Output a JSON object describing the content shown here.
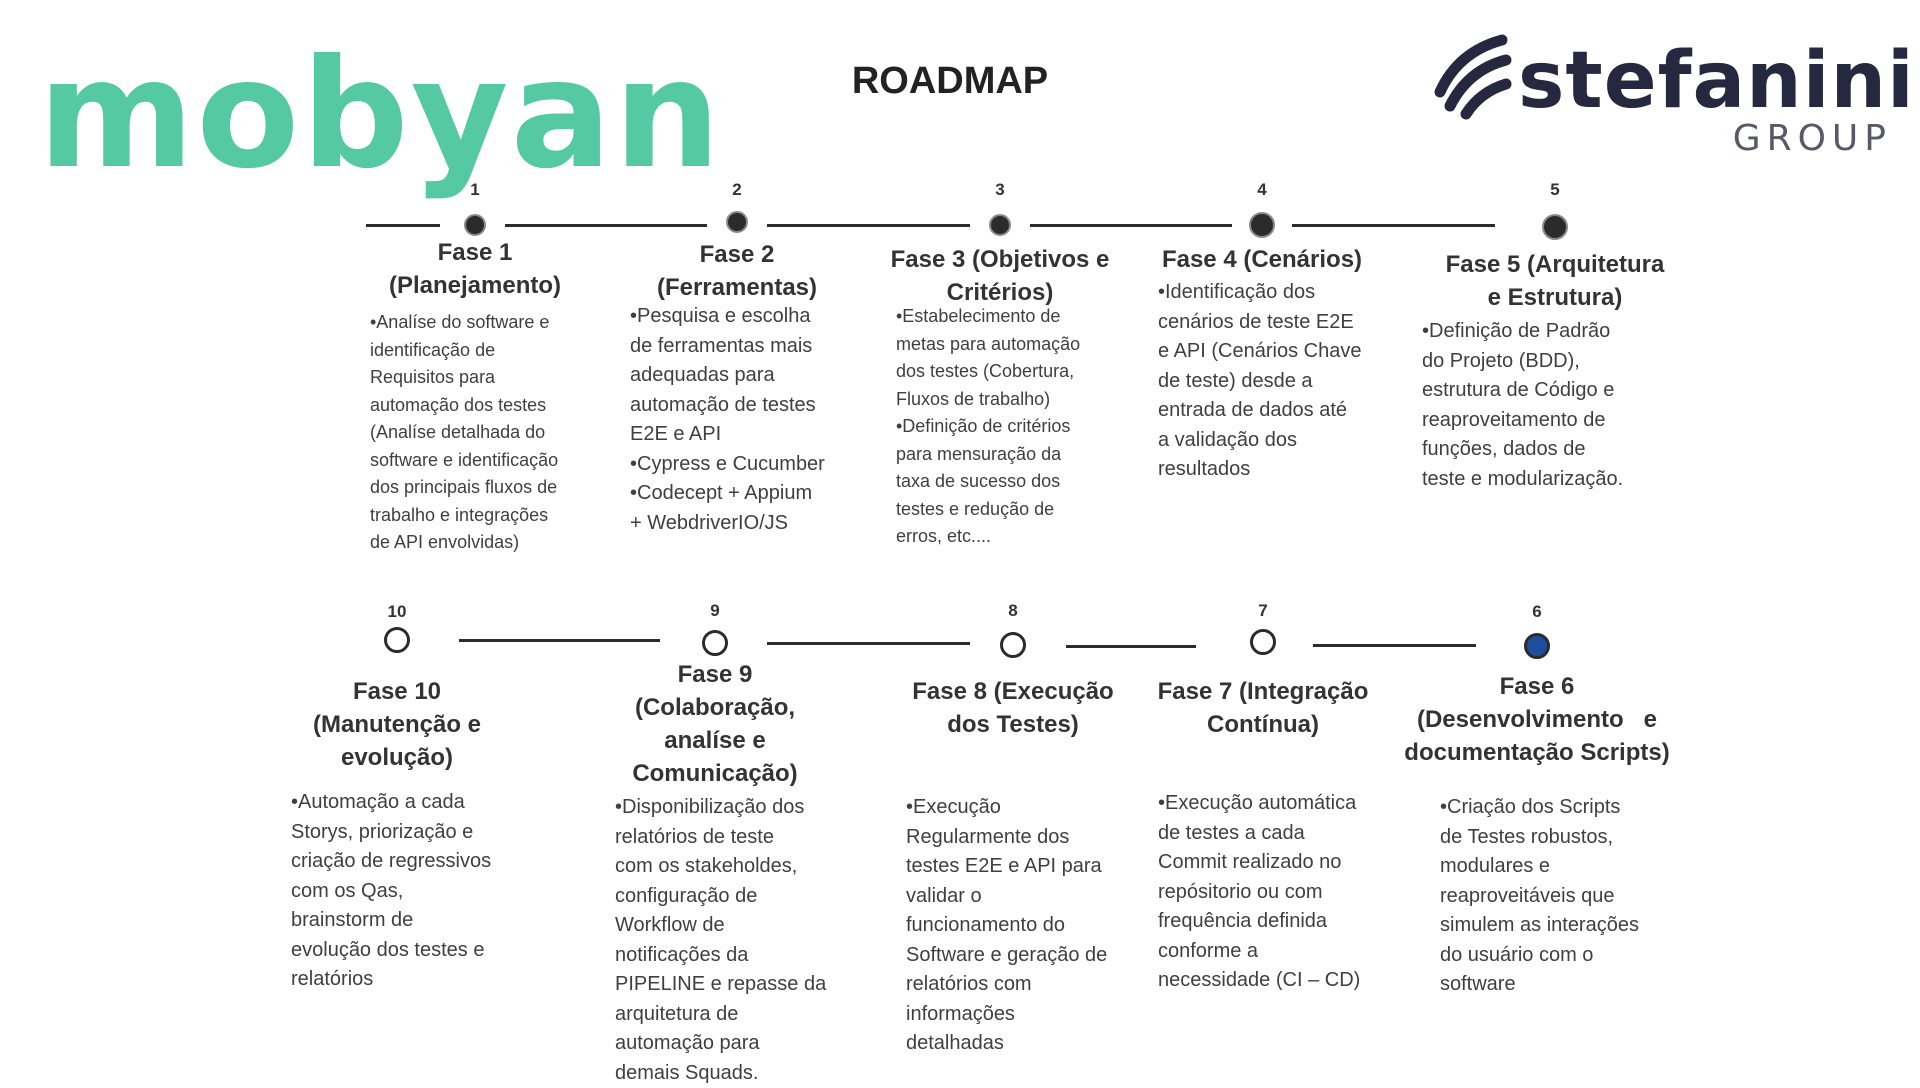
{
  "title": "ROADMAP",
  "logos": {
    "left": "mobyan",
    "right_name": "stefanini",
    "right_sub": "GROUP"
  },
  "colors": {
    "mobyan_green": "#55c9a1",
    "stefanini_navy": "#25283f",
    "current_phase_blue": "#1e4d9c",
    "line_dark": "#2c2c2c"
  },
  "phases": [
    {
      "number": "1",
      "status": "filled",
      "title_lines": [
        "Fase 1",
        "(Planejamento)"
      ],
      "desc_lines": [
        "•Analíse do software e",
        "identificação de",
        "Requisitos para",
        "automação dos testes",
        "(Analíse detalhada do",
        "software e identificação",
        "dos principais fluxos de",
        "trabalho e integrações",
        "de API envolvidas)"
      ]
    },
    {
      "number": "2",
      "status": "filled",
      "title_lines": [
        "Fase 2",
        "(Ferramentas)"
      ],
      "desc_lines": [
        "•Pesquisa e escolha",
        "de ferramentas mais",
        "adequadas para",
        "automação de testes",
        "E2E e API",
        "•Cypress e Cucumber",
        "•Codecept + Appium",
        "+ WebdriverIO/JS"
      ]
    },
    {
      "number": "3",
      "status": "filled",
      "title_lines": [
        "Fase 3 (Objetivos e",
        "Critérios)"
      ],
      "desc_lines": [
        "•Estabelecimento de",
        "metas para automação",
        "dos testes (Cobertura,",
        "Fluxos de trabalho)",
        "•Definição de critérios",
        "para mensuração da",
        "taxa de sucesso dos",
        "testes e redução de",
        "erros, etc...."
      ]
    },
    {
      "number": "4",
      "status": "filled",
      "title_lines": [
        "Fase 4 (Cenários)"
      ],
      "desc_lines": [
        "•Identificação dos",
        "cenários de teste E2E",
        "e API (Cenários Chave",
        "de teste) desde a",
        "entrada de dados até",
        "a validação dos",
        "resultados"
      ]
    },
    {
      "number": "5",
      "status": "filled",
      "title_lines": [
        "Fase 5 (Arquitetura",
        "e Estrutura)"
      ],
      "desc_lines": [
        "•Definição de Padrão",
        "do Projeto (BDD),",
        "estrutura de Código e",
        "reaproveitamento de",
        "funções, dados de",
        "teste e modularização."
      ]
    },
    {
      "number": "6",
      "status": "current",
      "title_lines": [
        "Fase 6",
        "(Desenvolvimento   e",
        "documentação Scripts)"
      ],
      "desc_lines": [
        "•Criação dos Scripts",
        "de Testes robustos,",
        "modulares e",
        "reaproveitáveis que",
        "simulem as interações",
        "do usuário com o",
        "software"
      ]
    },
    {
      "number": "7",
      "status": "pending",
      "title_lines": [
        "Fase 7 (Integração",
        "Contínua)"
      ],
      "desc_lines": [
        "•Execução automática",
        "de testes a cada",
        "Commit realizado no",
        "repósitorio ou com",
        "frequência definida",
        "conforme a",
        "necessidade (CI – CD)"
      ]
    },
    {
      "number": "8",
      "status": "pending",
      "title_lines": [
        "Fase 8 (Execução",
        "dos Testes)"
      ],
      "desc_lines": [
        "•Execução",
        "Regularmente dos",
        "testes E2E e API para",
        "validar o",
        "funcionamento do",
        "Software e geração de",
        "relatórios com",
        "informações",
        "detalhadas"
      ]
    },
    {
      "number": "9",
      "status": "pending",
      "title_lines": [
        "Fase 9",
        "(Colaboração,",
        "analíse e",
        "Comunicação)"
      ],
      "desc_lines": [
        "•Disponibilização dos",
        "relatórios de teste",
        "com os stakeholdes,",
        "configuração de",
        "Workflow de",
        "notificações da",
        "PIPELINE e repasse da",
        "arquitetura de",
        "automação para",
        "demais Squads."
      ]
    },
    {
      "number": "10",
      "status": "pending",
      "title_lines": [
        "Fase 10",
        "(Manutenção e",
        "evolução)"
      ],
      "desc_lines": [
        "•Automação a cada",
        "Storys, priorização e",
        "criação de regressivos",
        "com os Qas,",
        "brainstorm de",
        "evolução dos testes e",
        "relatórios"
      ]
    }
  ]
}
